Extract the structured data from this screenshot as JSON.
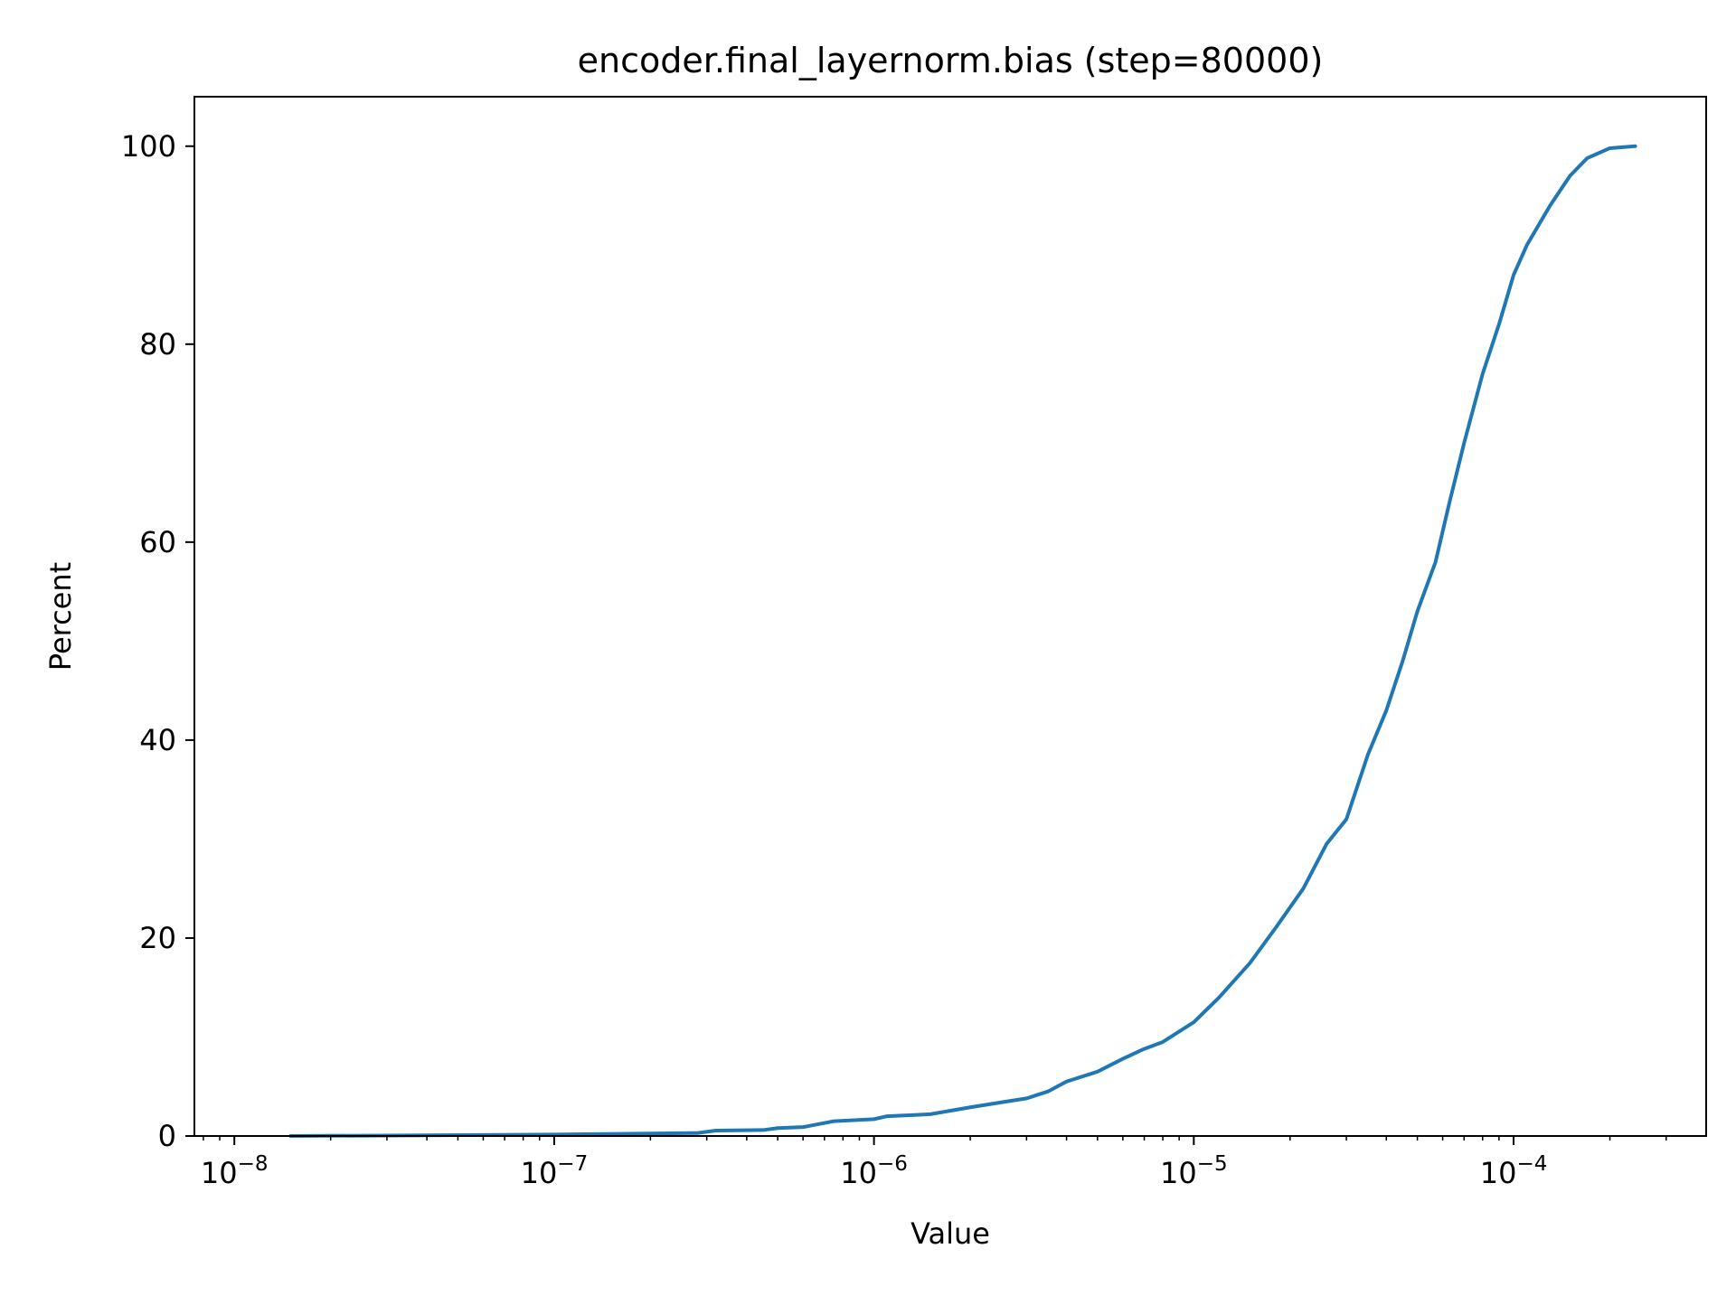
{
  "chart_data": {
    "type": "line",
    "title": "encoder.final_layernorm.bias (step=80000)",
    "xlabel": "Value",
    "ylabel": "Percent",
    "xscale": "log",
    "xlim": [
      7.5e-09,
      0.0004
    ],
    "ylim": [
      0,
      105
    ],
    "grid": false,
    "legend": "none",
    "line_color": "#1f77b4",
    "x_ticks": [
      {
        "value": 1e-08,
        "base": "10",
        "exp": "−8"
      },
      {
        "value": 1e-07,
        "base": "10",
        "exp": "−7"
      },
      {
        "value": 1e-06,
        "base": "10",
        "exp": "−6"
      },
      {
        "value": 1e-05,
        "base": "10",
        "exp": "−5"
      },
      {
        "value": 0.0001,
        "base": "10",
        "exp": "−4"
      }
    ],
    "y_ticks": [
      {
        "value": 0,
        "label": "0"
      },
      {
        "value": 20,
        "label": "20"
      },
      {
        "value": 40,
        "label": "40"
      },
      {
        "value": 60,
        "label": "60"
      },
      {
        "value": 80,
        "label": "80"
      },
      {
        "value": 100,
        "label": "100"
      }
    ],
    "series": [
      {
        "x": [
          1.5e-08,
          3e-08,
          6e-08,
          1e-07,
          2e-07,
          2.8e-07,
          3.2e-07,
          4.5e-07,
          5e-07,
          6e-07,
          7.5e-07,
          1e-06,
          1.1e-06,
          1.5e-06,
          2e-06,
          2.5e-06,
          3e-06,
          3.5e-06,
          4e-06,
          5e-06,
          6e-06,
          7e-06,
          8e-06,
          1e-05,
          1.2e-05,
          1.5e-05,
          1.8e-05,
          2.2e-05,
          2.6e-05,
          3e-05,
          3.5e-05,
          4e-05,
          4.5e-05,
          5e-05,
          5.7e-05,
          6.3e-05,
          7e-05,
          8e-05,
          9e-05,
          0.0001,
          0.00011,
          0.00013,
          0.00015,
          0.00017,
          0.0002,
          0.00024
        ],
        "y": [
          0,
          0.05,
          0.1,
          0.15,
          0.25,
          0.3,
          0.55,
          0.6,
          0.8,
          0.9,
          1.5,
          1.7,
          2.0,
          2.2,
          2.9,
          3.4,
          3.8,
          4.5,
          5.5,
          6.5,
          7.8,
          8.8,
          9.5,
          11.5,
          14,
          17.5,
          21,
          25,
          29.5,
          32,
          38.5,
          43,
          48,
          53,
          58,
          64,
          70,
          77,
          82,
          87,
          90,
          94,
          97,
          98.8,
          99.8,
          100
        ]
      }
    ]
  }
}
